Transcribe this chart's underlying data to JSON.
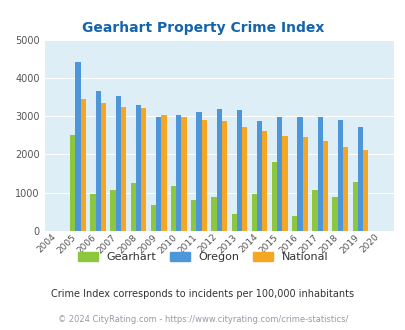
{
  "title": "Gearhart Property Crime Index",
  "title_color": "#1464ac",
  "years": [
    2004,
    2005,
    2006,
    2007,
    2008,
    2009,
    2010,
    2011,
    2012,
    2013,
    2014,
    2015,
    2016,
    2017,
    2018,
    2019,
    2020
  ],
  "gearhart": [
    0,
    2520,
    960,
    1080,
    1250,
    680,
    1170,
    820,
    890,
    450,
    970,
    1800,
    400,
    1080,
    880,
    1270,
    0
  ],
  "oregon": [
    0,
    4420,
    3650,
    3530,
    3280,
    2980,
    3040,
    3100,
    3200,
    3170,
    2870,
    2970,
    2970,
    2990,
    2890,
    2720,
    0
  ],
  "national": [
    0,
    3440,
    3340,
    3230,
    3210,
    3030,
    2980,
    2900,
    2870,
    2720,
    2600,
    2490,
    2460,
    2360,
    2200,
    2110,
    0
  ],
  "bar_colors": {
    "gearhart": "#8dc63f",
    "oregon": "#4d96d9",
    "national": "#f5a623"
  },
  "bg_color": "#ddeef6",
  "ylim": [
    0,
    5000
  ],
  "yticks": [
    0,
    1000,
    2000,
    3000,
    4000,
    5000
  ],
  "legend_labels": [
    "Gearhart",
    "Oregon",
    "National"
  ],
  "footnote1": "Crime Index corresponds to incidents per 100,000 inhabitants",
  "footnote2": "© 2024 CityRating.com - https://www.cityrating.com/crime-statistics/",
  "footnote1_color": "#333333",
  "footnote2_color": "#9999aa",
  "figsize": [
    4.06,
    3.3
  ],
  "dpi": 100
}
